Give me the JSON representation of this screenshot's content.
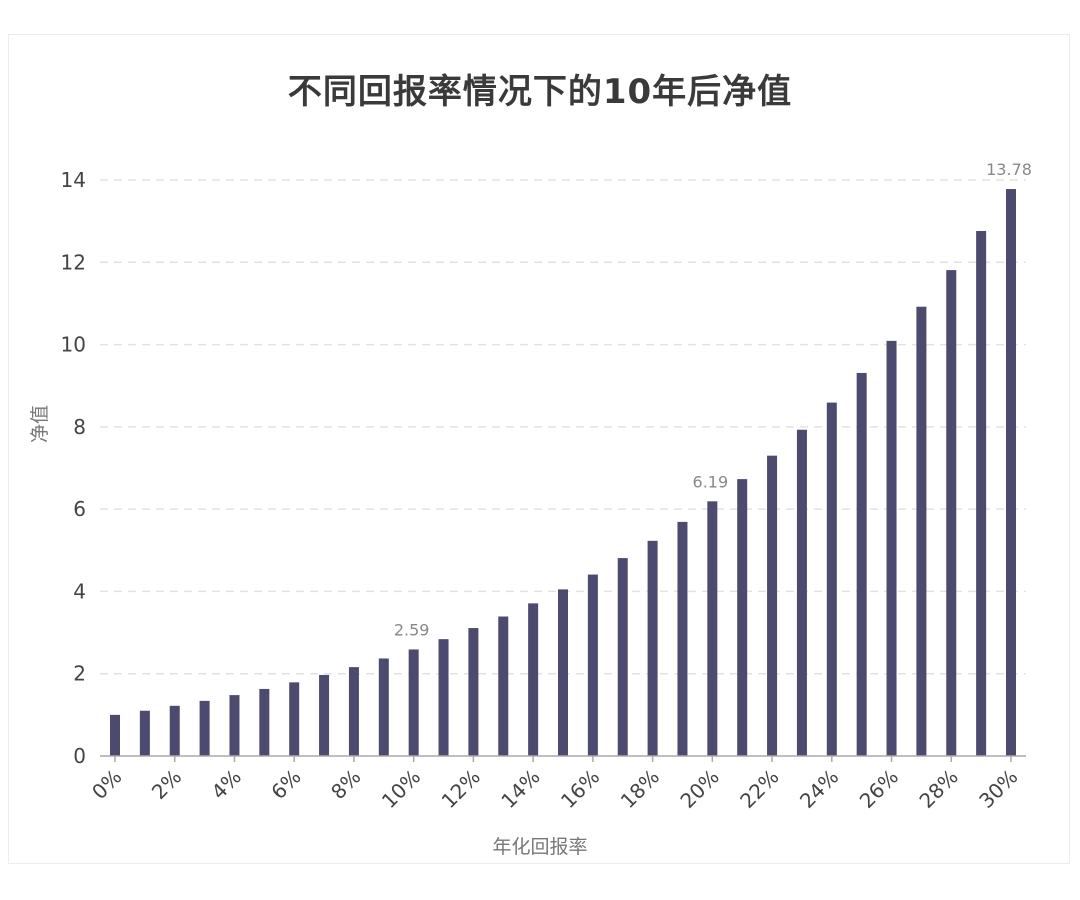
{
  "chart_data": {
    "type": "bar",
    "title": "不同回报率情况下的10年后净值",
    "xlabel": "年化回报率",
    "ylabel": "净值",
    "ylim": [
      0,
      14
    ],
    "yticks": [
      0,
      2,
      4,
      6,
      8,
      10,
      12,
      14
    ],
    "grid": true,
    "color": "#4c4a6e",
    "categories": [
      "0%",
      "1%",
      "2%",
      "3%",
      "4%",
      "5%",
      "6%",
      "7%",
      "8%",
      "9%",
      "10%",
      "11%",
      "12%",
      "13%",
      "14%",
      "15%",
      "16%",
      "17%",
      "18%",
      "19%",
      "20%",
      "21%",
      "22%",
      "23%",
      "24%",
      "25%",
      "26%",
      "27%",
      "28%",
      "29%",
      "30%"
    ],
    "tick_labels": [
      "0%",
      "2%",
      "4%",
      "6%",
      "8%",
      "10%",
      "12%",
      "14%",
      "16%",
      "18%",
      "20%",
      "22%",
      "24%",
      "26%",
      "28%",
      "30%"
    ],
    "values": [
      1.0,
      1.1,
      1.22,
      1.34,
      1.48,
      1.63,
      1.79,
      1.97,
      2.16,
      2.37,
      2.59,
      2.84,
      3.11,
      3.39,
      3.71,
      4.05,
      4.41,
      4.81,
      5.23,
      5.69,
      6.19,
      6.73,
      7.3,
      7.93,
      8.59,
      9.31,
      10.09,
      10.92,
      11.81,
      12.76,
      13.78
    ],
    "data_labels": [
      {
        "category": "10%",
        "text": "2.59"
      },
      {
        "category": "20%",
        "text": "6.19"
      },
      {
        "category": "30%",
        "text": "13.78"
      }
    ]
  }
}
